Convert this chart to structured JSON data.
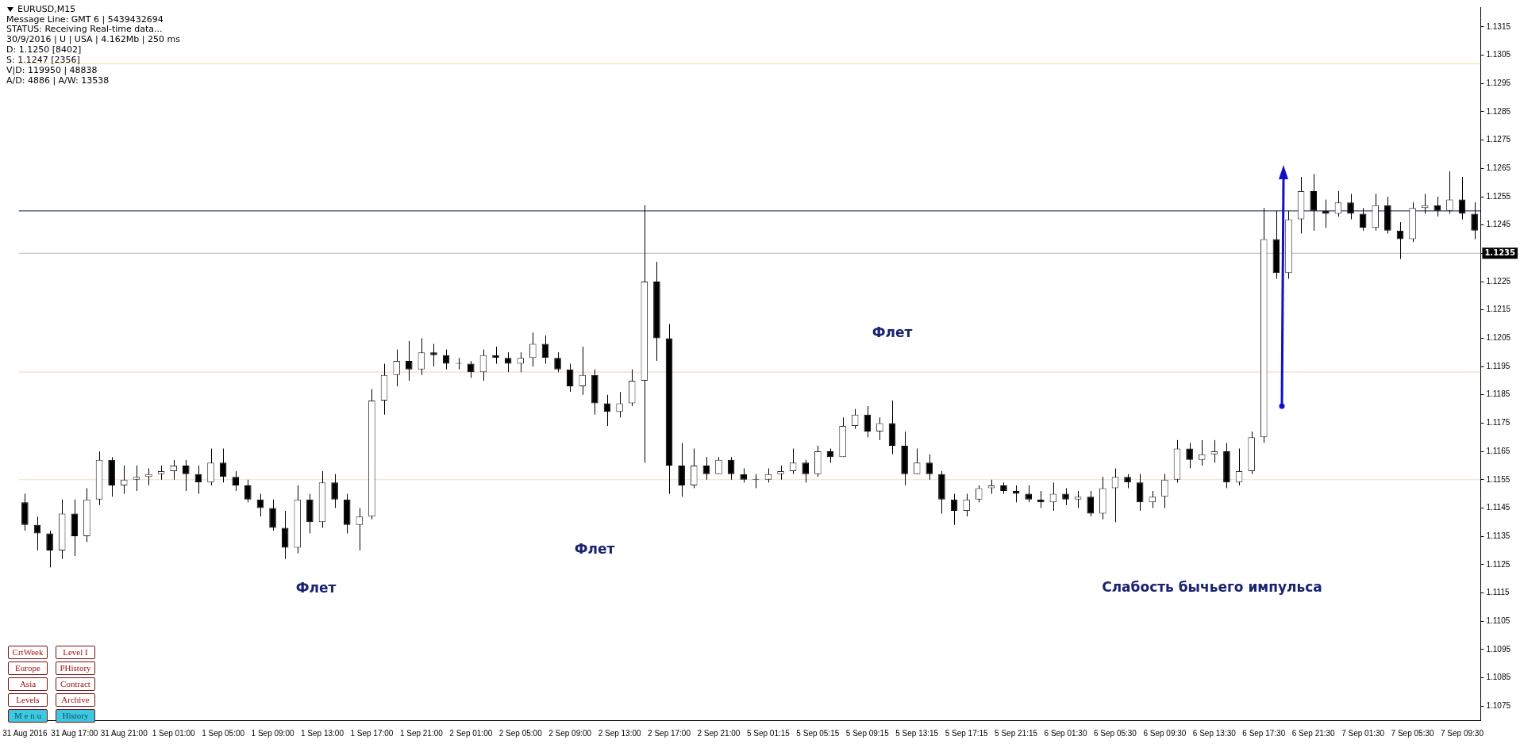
{
  "chart_data": {
    "type": "candlestick",
    "categories": [
      "31 Aug 2016",
      null,
      null,
      null,
      "31 Aug 17:00",
      null,
      null,
      null,
      "31 Aug 21:00",
      null,
      null,
      null,
      "1 Sep 01:00",
      null,
      null,
      null,
      "1 Sep 05:00",
      null,
      null,
      null,
      "1 Sep 09:00",
      null,
      null,
      null,
      "1 Sep 13:00",
      null,
      null,
      null,
      "1 Sep 17:00",
      null,
      null,
      null,
      "1 Sep 21:00",
      null,
      null,
      null,
      "2 Sep 01:00",
      null,
      null,
      null,
      "2 Sep 05:00",
      null,
      null,
      null,
      "2 Sep 09:00",
      null,
      null,
      null,
      "2 Sep 13:00",
      null,
      null,
      null,
      "2 Sep 17:00",
      null,
      null,
      null,
      "2 Sep 21:00",
      null,
      null,
      null,
      "5 Sep 01:15",
      null,
      null,
      null,
      "5 Sep 05:15",
      null,
      null,
      null,
      "5 Sep 09:15",
      null,
      null,
      null,
      "5 Sep 13:15",
      null,
      null,
      null,
      "5 Sep 17:15",
      null,
      null,
      null,
      "5 Sep 21:15",
      null,
      null,
      null,
      "6 Sep 01:30",
      null,
      null,
      null,
      "6 Sep 05:30",
      null,
      null,
      null,
      "6 Sep 09:30",
      null,
      null,
      null,
      "6 Sep 13:30",
      null,
      null,
      null,
      "6 Sep 17:30",
      null,
      null,
      null,
      "6 Sep 21:30",
      null,
      null,
      null,
      "7 Sep 01:30",
      null,
      null,
      null,
      "7 Sep 05:30",
      null,
      null,
      null,
      "7 Sep 09:30",
      null
    ],
    "ohlc": [
      [
        1.1147,
        1.115,
        1.1137,
        1.1139
      ],
      [
        1.1139,
        1.1142,
        1.113,
        1.1136
      ],
      [
        1.1136,
        1.1137,
        1.1124,
        1.113
      ],
      [
        1.113,
        1.1148,
        1.1127,
        1.1143
      ],
      [
        1.1143,
        1.1148,
        1.1128,
        1.1135
      ],
      [
        1.1135,
        1.1152,
        1.1133,
        1.1148
      ],
      [
        1.1148,
        1.1165,
        1.1146,
        1.1162
      ],
      [
        1.1162,
        1.1163,
        1.1149,
        1.1153
      ],
      [
        1.1153,
        1.116,
        1.115,
        1.1155
      ],
      [
        1.1155,
        1.116,
        1.1151,
        1.1156
      ],
      [
        1.1156,
        1.1159,
        1.1153,
        1.1157
      ],
      [
        1.1157,
        1.116,
        1.1155,
        1.1158
      ],
      [
        1.1158,
        1.1162,
        1.1155,
        1.116
      ],
      [
        1.116,
        1.1162,
        1.1151,
        1.1157
      ],
      [
        1.1157,
        1.116,
        1.115,
        1.1154
      ],
      [
        1.1154,
        1.1166,
        1.1153,
        1.1161
      ],
      [
        1.1161,
        1.1166,
        1.1154,
        1.1156
      ],
      [
        1.1156,
        1.1158,
        1.1151,
        1.1153
      ],
      [
        1.1153,
        1.1155,
        1.1147,
        1.1148
      ],
      [
        1.1148,
        1.115,
        1.1142,
        1.1145
      ],
      [
        1.1145,
        1.1148,
        1.1137,
        1.1138
      ],
      [
        1.1138,
        1.1144,
        1.1127,
        1.1131
      ],
      [
        1.1131,
        1.1153,
        1.1129,
        1.1148
      ],
      [
        1.1148,
        1.115,
        1.1136,
        1.114
      ],
      [
        1.114,
        1.1158,
        1.1138,
        1.1154
      ],
      [
        1.1154,
        1.1157,
        1.1145,
        1.1148
      ],
      [
        1.1148,
        1.115,
        1.1136,
        1.1139
      ],
      [
        1.1139,
        1.1145,
        1.113,
        1.1142
      ],
      [
        1.1142,
        1.1187,
        1.1141,
        1.1183
      ],
      [
        1.1183,
        1.1196,
        1.1178,
        1.1192
      ],
      [
        1.1192,
        1.1201,
        1.1188,
        1.1197
      ],
      [
        1.1197,
        1.1204,
        1.119,
        1.1194
      ],
      [
        1.1194,
        1.1205,
        1.1192,
        1.12
      ],
      [
        1.12,
        1.1203,
        1.1195,
        1.1199
      ],
      [
        1.1199,
        1.1201,
        1.1194,
        1.1196
      ],
      [
        1.1196,
        1.1198,
        1.1194,
        1.1196
      ],
      [
        1.1196,
        1.1197,
        1.1191,
        1.1193
      ],
      [
        1.1193,
        1.1201,
        1.119,
        1.1199
      ],
      [
        1.1199,
        1.1202,
        1.1196,
        1.1198
      ],
      [
        1.1198,
        1.12,
        1.1193,
        1.1196
      ],
      [
        1.1196,
        1.12,
        1.1193,
        1.1198
      ],
      [
        1.1198,
        1.1207,
        1.1195,
        1.1203
      ],
      [
        1.1203,
        1.1206,
        1.1196,
        1.1198
      ],
      [
        1.1198,
        1.12,
        1.1193,
        1.1194
      ],
      [
        1.1194,
        1.1196,
        1.1186,
        1.1188
      ],
      [
        1.1188,
        1.1202,
        1.1185,
        1.1192
      ],
      [
        1.1192,
        1.1194,
        1.1178,
        1.1182
      ],
      [
        1.1182,
        1.1185,
        1.1174,
        1.1179
      ],
      [
        1.1179,
        1.1186,
        1.1177,
        1.1182
      ],
      [
        1.1182,
        1.1194,
        1.1181,
        1.119
      ],
      [
        1.119,
        1.1252,
        1.1161,
        1.1225
      ],
      [
        1.1225,
        1.1232,
        1.1197,
        1.1205
      ],
      [
        1.1205,
        1.121,
        1.115,
        1.116
      ],
      [
        1.116,
        1.1168,
        1.1149,
        1.1153
      ],
      [
        1.1153,
        1.1166,
        1.1152,
        1.116
      ],
      [
        1.116,
        1.1163,
        1.1155,
        1.1157
      ],
      [
        1.1157,
        1.1163,
        1.1157,
        1.1162
      ],
      [
        1.1162,
        1.1163,
        1.1155,
        1.1157
      ],
      [
        1.1157,
        1.1159,
        1.1154,
        1.1155
      ],
      [
        1.1155,
        1.1157,
        1.1152,
        1.1155
      ],
      [
        1.1155,
        1.1159,
        1.1154,
        1.1157
      ],
      [
        1.1157,
        1.116,
        1.1155,
        1.1158
      ],
      [
        1.1158,
        1.1166,
        1.1157,
        1.1161
      ],
      [
        1.1161,
        1.1162,
        1.1154,
        1.1157
      ],
      [
        1.1157,
        1.1167,
        1.1156,
        1.1165
      ],
      [
        1.1165,
        1.1166,
        1.1161,
        1.1163
      ],
      [
        1.1163,
        1.1177,
        1.1163,
        1.1174
      ],
      [
        1.1174,
        1.118,
        1.1173,
        1.1178
      ],
      [
        1.1178,
        1.1181,
        1.117,
        1.1172
      ],
      [
        1.1172,
        1.1177,
        1.1169,
        1.1175
      ],
      [
        1.1175,
        1.1183,
        1.1164,
        1.1167
      ],
      [
        1.1167,
        1.1172,
        1.1153,
        1.1157
      ],
      [
        1.1157,
        1.1166,
        1.1157,
        1.1161
      ],
      [
        1.1161,
        1.1164,
        1.1155,
        1.1157
      ],
      [
        1.1157,
        1.1158,
        1.1143,
        1.1148
      ],
      [
        1.1148,
        1.115,
        1.1139,
        1.1144
      ],
      [
        1.1144,
        1.115,
        1.1142,
        1.1148
      ],
      [
        1.1148,
        1.1153,
        1.1147,
        1.1152
      ],
      [
        1.1152,
        1.1155,
        1.115,
        1.1153
      ],
      [
        1.1153,
        1.1154,
        1.115,
        1.1151
      ],
      [
        1.1151,
        1.1153,
        1.1147,
        1.115
      ],
      [
        1.115,
        1.1153,
        1.1147,
        1.1148
      ],
      [
        1.1148,
        1.1151,
        1.1145,
        1.1147
      ],
      [
        1.1147,
        1.1154,
        1.1144,
        1.115
      ],
      [
        1.115,
        1.1152,
        1.1146,
        1.1148
      ],
      [
        1.1148,
        1.1151,
        1.1145,
        1.1149
      ],
      [
        1.1149,
        1.1151,
        1.1142,
        1.1143
      ],
      [
        1.1143,
        1.1156,
        1.1141,
        1.1152
      ],
      [
        1.1152,
        1.1159,
        1.114,
        1.1156
      ],
      [
        1.1156,
        1.1157,
        1.1152,
        1.1154
      ],
      [
        1.1154,
        1.1157,
        1.1144,
        1.1147
      ],
      [
        1.1147,
        1.1151,
        1.1145,
        1.1149
      ],
      [
        1.1149,
        1.1157,
        1.1145,
        1.1155
      ],
      [
        1.1155,
        1.1169,
        1.1154,
        1.1166
      ],
      [
        1.1166,
        1.1168,
        1.1159,
        1.1162
      ],
      [
        1.1162,
        1.1169,
        1.116,
        1.1164
      ],
      [
        1.1164,
        1.1169,
        1.1161,
        1.1165
      ],
      [
        1.1165,
        1.1168,
        1.1152,
        1.1154
      ],
      [
        1.1154,
        1.1166,
        1.1153,
        1.1158
      ],
      [
        1.1158,
        1.1172,
        1.1157,
        1.117
      ],
      [
        1.117,
        1.1251,
        1.1168,
        1.124
      ],
      [
        1.124,
        1.125,
        1.1226,
        1.1228
      ],
      [
        1.1228,
        1.125,
        1.1226,
        1.1247
      ],
      [
        1.1247,
        1.1262,
        1.1242,
        1.1257
      ],
      [
        1.1257,
        1.1263,
        1.1243,
        1.125
      ],
      [
        1.125,
        1.1254,
        1.1244,
        1.1249
      ],
      [
        1.1249,
        1.1257,
        1.1248,
        1.1253
      ],
      [
        1.1253,
        1.1256,
        1.1247,
        1.1249
      ],
      [
        1.1249,
        1.1251,
        1.1243,
        1.1244
      ],
      [
        1.1244,
        1.1256,
        1.1243,
        1.1252
      ],
      [
        1.1252,
        1.1255,
        1.1242,
        1.1243
      ],
      [
        1.1243,
        1.1246,
        1.1233,
        1.124
      ],
      [
        1.124,
        1.1253,
        1.1239,
        1.1251
      ],
      [
        1.1251,
        1.1256,
        1.1249,
        1.1252
      ],
      [
        1.1252,
        1.1255,
        1.1248,
        1.125
      ],
      [
        1.125,
        1.1264,
        1.1249,
        1.1254
      ],
      [
        1.1254,
        1.1262,
        1.1247,
        1.1249
      ],
      [
        1.1249,
        1.1253,
        1.124,
        1.1243
      ]
    ],
    "ylim": [
      1.107,
      1.1322
    ],
    "yticks": [
      1.1075,
      1.1085,
      1.1095,
      1.1105,
      1.1115,
      1.1125,
      1.1135,
      1.1145,
      1.1155,
      1.1165,
      1.1175,
      1.1185,
      1.1195,
      1.1205,
      1.1215,
      1.1225,
      1.1235,
      1.1245,
      1.1255,
      1.1265,
      1.1275,
      1.1285,
      1.1295,
      1.1305,
      1.1315
    ],
    "ref_lines": [
      {
        "axis": "y",
        "value": 1.1302,
        "color": "#f3e2b0"
      },
      {
        "axis": "y",
        "value": 1.1193,
        "color": "#f3dcc4"
      },
      {
        "axis": "y",
        "value": 1.1155,
        "color": "#f3dcc4"
      },
      {
        "axis": "y",
        "value": 1.125,
        "color": "#3c4a68"
      },
      {
        "axis": "y",
        "value": 1.1235,
        "label": "1.1235",
        "color": "#c4c4c4"
      }
    ],
    "annotations": [
      "EURUSD,M15",
      "Message Line: GMT 6 | 5439432694",
      "STATUS:  Receiving Real-time data...",
      "30/9/2016 | U | USA | 4.162Mb | 250 ms",
      "D: 1.1250  [8402]",
      "S: 1.1247  [2356]",
      "V|D: 119950 | 48838",
      "A/D: 4886 | A/W: 13538",
      "Флет",
      "Флет",
      "Флет",
      "Слабость бычьего импульса",
      "CrtWeek",
      "Level I",
      "Europe",
      "PHistory",
      "Asia",
      "Contract",
      "Levels",
      "Archive",
      "M e n u",
      "History"
    ]
  }
}
